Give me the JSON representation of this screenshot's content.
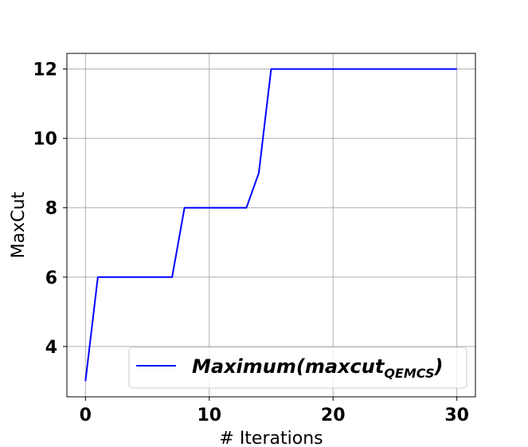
{
  "chart_data": {
    "type": "line",
    "title": "",
    "xlabel": "# Iterations",
    "ylabel": "MaxCut",
    "xlim": [
      -1.5,
      31.5
    ],
    "ylim": [
      2.55,
      12.45
    ],
    "xticks": [
      0,
      10,
      20,
      30
    ],
    "yticks": [
      4,
      6,
      8,
      10,
      12
    ],
    "grid": true,
    "legend_position": "lower-right",
    "series": [
      {
        "name": "Maximum(maxcut",
        "name_subscript": "QEMCS",
        "name_suffix": ")",
        "color": "#0000ff",
        "x": [
          0,
          1,
          2,
          3,
          4,
          5,
          6,
          7,
          8,
          9,
          10,
          11,
          12,
          13,
          14,
          15,
          16,
          17,
          18,
          19,
          20,
          21,
          22,
          23,
          24,
          25,
          26,
          27,
          28,
          29,
          30
        ],
        "y": [
          3,
          6,
          6,
          6,
          6,
          6,
          6,
          6,
          8,
          8,
          8,
          8,
          8,
          8,
          9,
          12,
          12,
          12,
          12,
          12,
          12,
          12,
          12,
          12,
          12,
          12,
          12,
          12,
          12,
          12,
          12
        ]
      }
    ]
  }
}
